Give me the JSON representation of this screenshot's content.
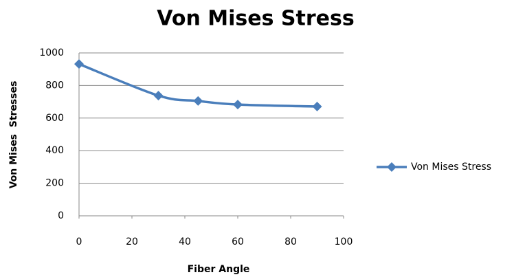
{
  "chart_data": {
    "type": "line",
    "title": "Von Mises Stress",
    "x_label": "Fiber Angle",
    "y_label": "Von Mises  Stresses",
    "x": [
      0,
      30,
      45,
      60,
      90
    ],
    "series": [
      {
        "name": "Von Mises Stress",
        "color": "#4a7ebb",
        "values": [
          932,
          738,
          705,
          683,
          671
        ]
      }
    ],
    "xlim": [
      0,
      100
    ],
    "xticks": [
      0,
      20,
      40,
      60,
      80,
      100
    ],
    "ylim": [
      0,
      1000
    ],
    "yticks": [
      0,
      200,
      400,
      600,
      800,
      1000
    ],
    "grid": true,
    "legend": "right"
  }
}
